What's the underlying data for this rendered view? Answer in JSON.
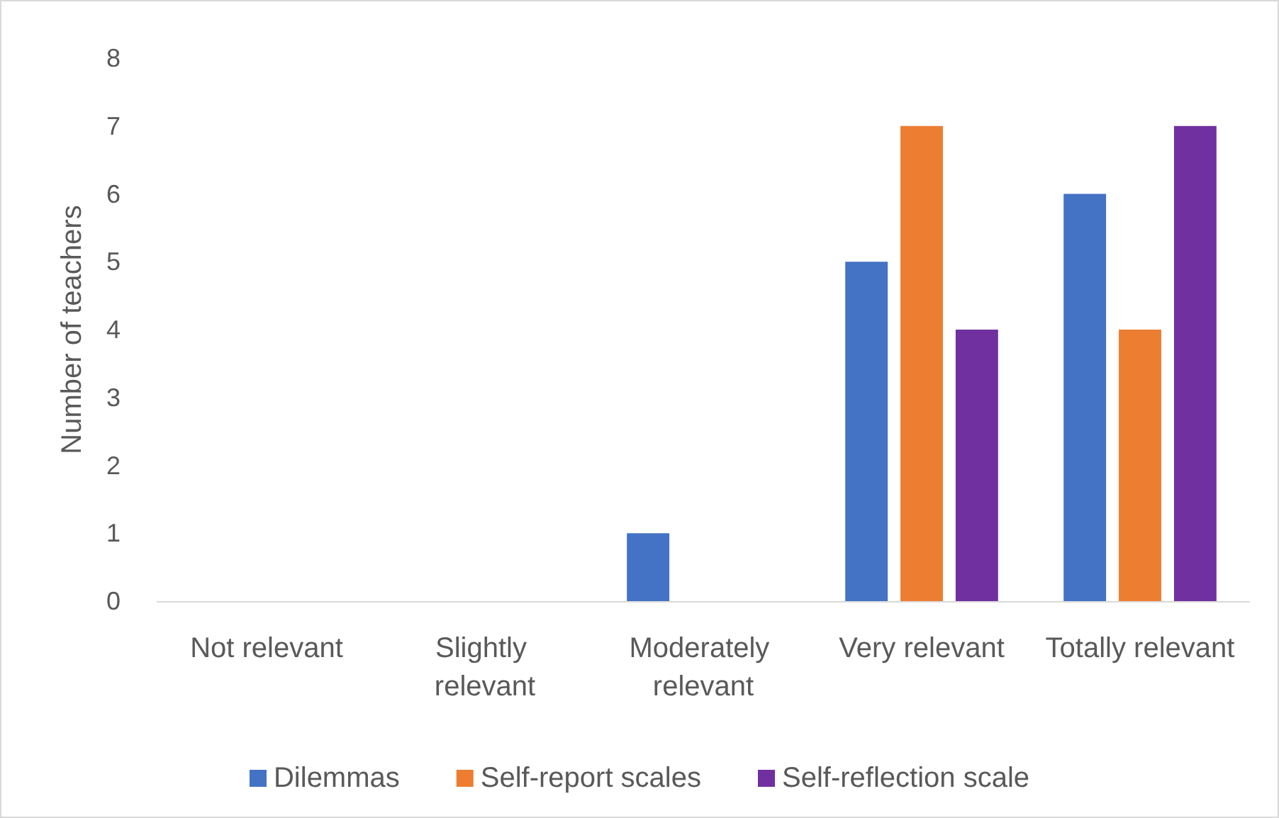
{
  "chart_data": {
    "type": "bar",
    "ylabel": "Number of teachers",
    "categories": [
      "Not relevant",
      "Slightly relevant",
      "Moderately relevant",
      "Very relevant",
      "Totally relevant"
    ],
    "series": [
      {
        "name": "Dilemmas",
        "color": "#4472c4",
        "values": [
          0,
          0,
          1,
          5,
          6
        ]
      },
      {
        "name": "Self-report scales",
        "color": "#ed7d31",
        "values": [
          0,
          0,
          0,
          7,
          4
        ]
      },
      {
        "name": "Self-reflection scale",
        "color": "#7030a0",
        "values": [
          0,
          0,
          0,
          4,
          7
        ]
      }
    ],
    "ylim": [
      0,
      8
    ],
    "yticks": [
      0,
      1,
      2,
      3,
      4,
      5,
      6,
      7,
      8
    ],
    "grid": false,
    "legend": "bottom"
  }
}
